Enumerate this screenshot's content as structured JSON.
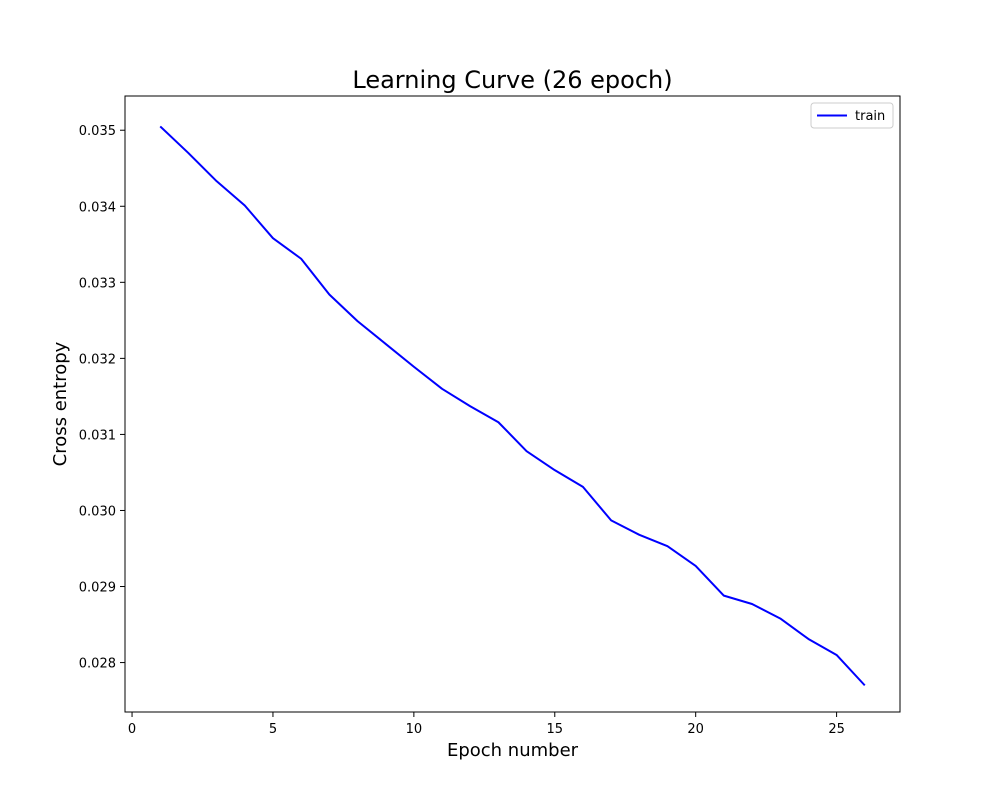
{
  "chart_data": {
    "type": "line",
    "title": "Learning Curve (26 epoch)",
    "xlabel": "Epoch number",
    "ylabel": "Cross entropy",
    "xlim": [
      -0.25,
      27.25
    ],
    "ylim": [
      0.02735,
      0.03545
    ],
    "xticks": [
      0,
      5,
      10,
      15,
      20,
      25
    ],
    "yticks": [
      0.028,
      0.029,
      0.03,
      0.031,
      0.032,
      0.033,
      0.034,
      0.035
    ],
    "grid": false,
    "legend_position": "top-right",
    "series": [
      {
        "name": "train",
        "color": "#0000ff",
        "x": [
          1,
          2,
          3,
          4,
          5,
          6,
          7,
          8,
          9,
          10,
          11,
          12,
          13,
          14,
          15,
          16,
          17,
          18,
          19,
          20,
          21,
          22,
          23,
          24,
          25,
          26
        ],
        "y": [
          0.03505,
          0.0347,
          0.03433,
          0.03401,
          0.03358,
          0.03331,
          0.03284,
          0.03249,
          0.03219,
          0.03189,
          0.0316,
          0.03137,
          0.03116,
          0.03078,
          0.03053,
          0.03031,
          0.02987,
          0.02968,
          0.02953,
          0.02927,
          0.02888,
          0.02877,
          0.02858,
          0.02831,
          0.0281,
          0.0277
        ]
      }
    ]
  }
}
